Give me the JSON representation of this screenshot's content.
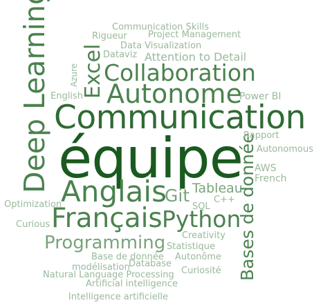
{
  "colors": {
    "darkest": "#1a5a1f",
    "dark": "#2f6b34",
    "mid": "#4a824e",
    "light": "#7aa37c",
    "pale": "#9ab99b"
  },
  "words": [
    {
      "text": "équipe"
    },
    {
      "text": "Communication"
    },
    {
      "text": "Deep Learning"
    },
    {
      "text": "Autonome"
    },
    {
      "text": "Collaboration"
    },
    {
      "text": "Anglais"
    },
    {
      "text": "Français"
    },
    {
      "text": "Python"
    },
    {
      "text": "Excel"
    },
    {
      "text": "Bases de donnée"
    },
    {
      "text": "Programming"
    },
    {
      "text": "Git"
    },
    {
      "text": "Tableau"
    },
    {
      "text": "Communication Skills"
    },
    {
      "text": "Project Management"
    },
    {
      "text": "Rigueur"
    },
    {
      "text": "Data Visualization"
    },
    {
      "text": "Dataviz"
    },
    {
      "text": "Attention to Detail"
    },
    {
      "text": "Azure"
    },
    {
      "text": "English"
    },
    {
      "text": "Power BI"
    },
    {
      "text": "Rapport"
    },
    {
      "text": "Autonomous"
    },
    {
      "text": "AWS"
    },
    {
      "text": "French"
    },
    {
      "text": "C++"
    },
    {
      "text": "SQL"
    },
    {
      "text": "Optimization"
    },
    {
      "text": "Curious"
    },
    {
      "text": "Creativity"
    },
    {
      "text": "Statistique"
    },
    {
      "text": "Base de donnée"
    },
    {
      "text": "Autonôme"
    },
    {
      "text": "modélisation"
    },
    {
      "text": "Database"
    },
    {
      "text": "Curiosité"
    },
    {
      "text": "Natural Language Processing"
    },
    {
      "text": "Artificial intelligence"
    },
    {
      "text": "Intelligence artificielle"
    }
  ]
}
